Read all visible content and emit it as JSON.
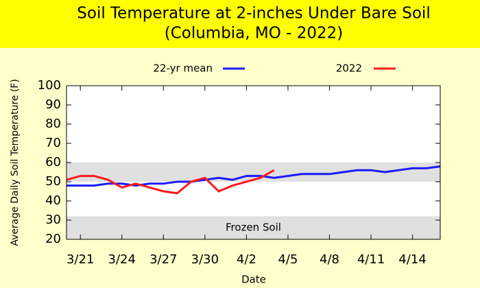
{
  "chart_data": {
    "type": "line",
    "title": [
      "Soil Temperature at 2-inches Under Bare Soil",
      "(Columbia, MO - 2022)"
    ],
    "x_label": "Date",
    "y_label": "Average Daily Soil Temperature (F)",
    "annotation": "Frozen Soil",
    "categories": [
      null,
      "3/21",
      null,
      null,
      "3/24",
      null,
      null,
      "3/27",
      null,
      null,
      "3/30",
      null,
      null,
      "4/2",
      null,
      null,
      "4/5",
      null,
      null,
      "4/8",
      null,
      null,
      "4/11",
      null,
      null,
      "4/14",
      null,
      null
    ],
    "series": [
      {
        "name": "22-yr mean",
        "color": "#1a1aff",
        "values": [
          48,
          48,
          48,
          49,
          49,
          48,
          49,
          49,
          50,
          50,
          51,
          52,
          51,
          53,
          53,
          52,
          53,
          54,
          54,
          54,
          55,
          56,
          56,
          55,
          56,
          57,
          57,
          58
        ]
      },
      {
        "name": "2022",
        "color": "#ff1a1a",
        "values": [
          51,
          53,
          53,
          51,
          47,
          49,
          47,
          45,
          44,
          50,
          52,
          45,
          48,
          50,
          52,
          56,
          null,
          null,
          null,
          null,
          null,
          null,
          null,
          null,
          null,
          null,
          null,
          null
        ]
      }
    ],
    "shaded_ranges": [
      [
        50,
        60
      ],
      [
        20,
        32
      ]
    ],
    "ylim": [
      20,
      100
    ],
    "yticks": [
      20,
      30,
      40,
      50,
      60,
      70,
      80,
      90,
      100
    ],
    "legend": "top"
  }
}
